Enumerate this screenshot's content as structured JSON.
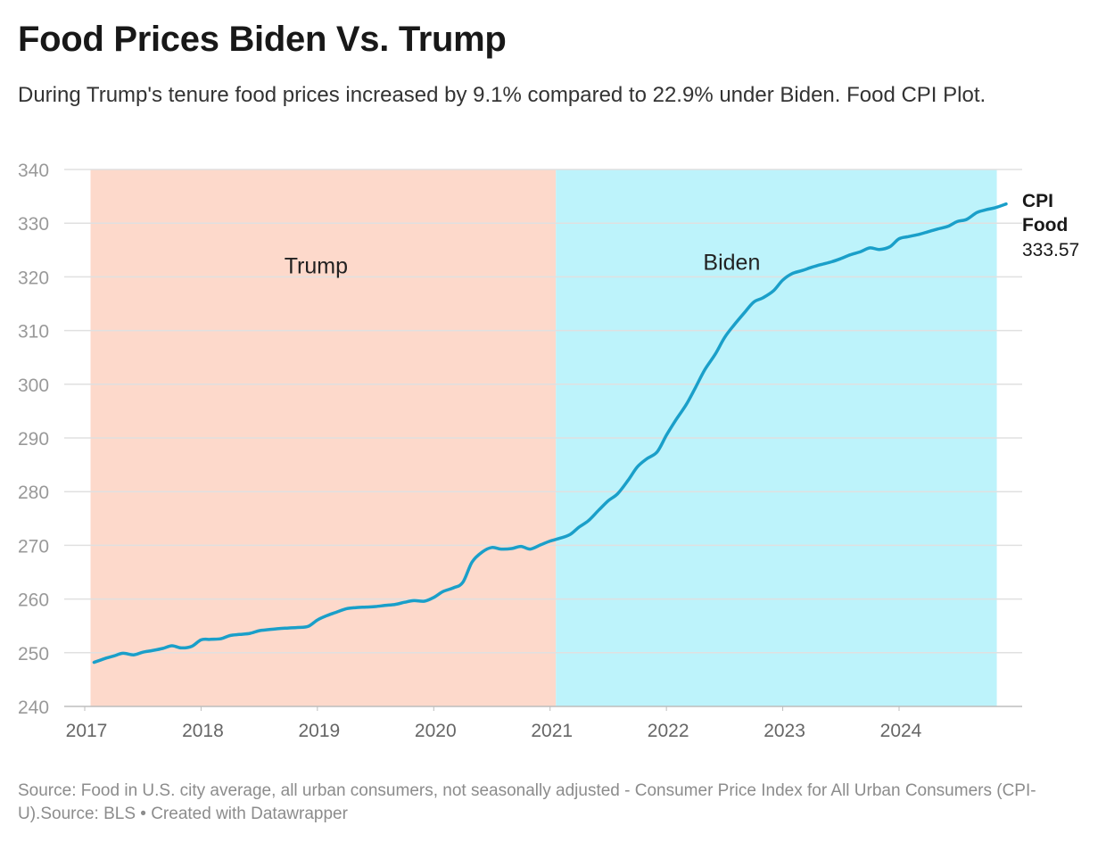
{
  "title": "Food Prices Biden Vs. Trump",
  "subtitle": "During Trump's tenure food prices increased by 9.1% compared to 22.9% under Biden. Food CPI Plot.",
  "source": "Source: Food in U.S. city average, all urban consumers, not seasonally adjusted - Consumer Price Index for All Urban Consumers (CPI-U).Source: BLS • Created with Datawrapper",
  "colors": {
    "line": "#1a9fc9",
    "trump_band": "#fdd9cb",
    "biden_band": "#bdf3fb",
    "grid": "#e0e0e0",
    "axis_text": "#999999"
  },
  "chart_data": {
    "type": "line",
    "title": "",
    "xlabel": "",
    "ylabel": "",
    "xlim": [
      2017.0,
      2024.92
    ],
    "ylim": [
      240,
      340
    ],
    "y_ticks": [
      240,
      250,
      260,
      270,
      280,
      290,
      300,
      310,
      320,
      330,
      340
    ],
    "x_ticks": [
      2017,
      2018,
      2019,
      2020,
      2021,
      2022,
      2023,
      2024
    ],
    "grid": true,
    "bands": [
      {
        "label": "Trump",
        "start": 2017.05,
        "end": 2021.05
      },
      {
        "label": "Biden",
        "start": 2021.05,
        "end": 2024.84
      }
    ],
    "series": [
      {
        "name": "CPI Food",
        "end_label_value": "333.57",
        "points": [
          [
            2017.08,
            248.2
          ],
          [
            2017.17,
            248.9
          ],
          [
            2017.25,
            249.4
          ],
          [
            2017.33,
            249.9
          ],
          [
            2017.42,
            249.6
          ],
          [
            2017.5,
            250.1
          ],
          [
            2017.58,
            250.4
          ],
          [
            2017.67,
            250.8
          ],
          [
            2017.75,
            251.3
          ],
          [
            2017.83,
            250.9
          ],
          [
            2017.92,
            251.2
          ],
          [
            2018.0,
            252.4
          ],
          [
            2018.08,
            252.5
          ],
          [
            2018.17,
            252.6
          ],
          [
            2018.25,
            253.2
          ],
          [
            2018.33,
            253.4
          ],
          [
            2018.42,
            253.6
          ],
          [
            2018.5,
            254.1
          ],
          [
            2018.58,
            254.3
          ],
          [
            2018.67,
            254.5
          ],
          [
            2018.75,
            254.6
          ],
          [
            2018.83,
            254.7
          ],
          [
            2018.92,
            254.9
          ],
          [
            2019.0,
            256.1
          ],
          [
            2019.08,
            256.9
          ],
          [
            2019.17,
            257.6
          ],
          [
            2019.25,
            258.2
          ],
          [
            2019.33,
            258.4
          ],
          [
            2019.42,
            258.5
          ],
          [
            2019.5,
            258.6
          ],
          [
            2019.58,
            258.8
          ],
          [
            2019.67,
            259.0
          ],
          [
            2019.75,
            259.4
          ],
          [
            2019.83,
            259.7
          ],
          [
            2019.92,
            259.6
          ],
          [
            2020.0,
            260.3
          ],
          [
            2020.08,
            261.4
          ],
          [
            2020.17,
            262.1
          ],
          [
            2020.25,
            263.1
          ],
          [
            2020.33,
            266.9
          ],
          [
            2020.42,
            268.8
          ],
          [
            2020.5,
            269.6
          ],
          [
            2020.58,
            269.3
          ],
          [
            2020.67,
            269.4
          ],
          [
            2020.75,
            269.8
          ],
          [
            2020.83,
            269.3
          ],
          [
            2020.92,
            270.1
          ],
          [
            2021.0,
            270.8
          ],
          [
            2021.08,
            271.3
          ],
          [
            2021.17,
            272.0
          ],
          [
            2021.25,
            273.4
          ],
          [
            2021.33,
            274.6
          ],
          [
            2021.42,
            276.6
          ],
          [
            2021.5,
            278.3
          ],
          [
            2021.58,
            279.6
          ],
          [
            2021.67,
            282.1
          ],
          [
            2021.75,
            284.6
          ],
          [
            2021.83,
            286.1
          ],
          [
            2021.92,
            287.4
          ],
          [
            2022.0,
            290.5
          ],
          [
            2022.08,
            293.3
          ],
          [
            2022.17,
            296.2
          ],
          [
            2022.25,
            299.4
          ],
          [
            2022.33,
            302.7
          ],
          [
            2022.42,
            305.6
          ],
          [
            2022.5,
            308.7
          ],
          [
            2022.58,
            311.0
          ],
          [
            2022.67,
            313.3
          ],
          [
            2022.75,
            315.3
          ],
          [
            2022.83,
            316.1
          ],
          [
            2022.92,
            317.4
          ],
          [
            2023.0,
            319.4
          ],
          [
            2023.08,
            320.6
          ],
          [
            2023.17,
            321.2
          ],
          [
            2023.25,
            321.8
          ],
          [
            2023.33,
            322.3
          ],
          [
            2023.42,
            322.8
          ],
          [
            2023.5,
            323.4
          ],
          [
            2023.58,
            324.1
          ],
          [
            2023.67,
            324.7
          ],
          [
            2023.75,
            325.4
          ],
          [
            2023.83,
            325.1
          ],
          [
            2023.92,
            325.6
          ],
          [
            2024.0,
            327.1
          ],
          [
            2024.08,
            327.5
          ],
          [
            2024.17,
            327.9
          ],
          [
            2024.25,
            328.4
          ],
          [
            2024.33,
            328.9
          ],
          [
            2024.42,
            329.4
          ],
          [
            2024.5,
            330.3
          ],
          [
            2024.58,
            330.7
          ],
          [
            2024.67,
            332.0
          ],
          [
            2024.75,
            332.5
          ],
          [
            2024.83,
            332.9
          ],
          [
            2024.92,
            333.57
          ]
        ]
      }
    ]
  }
}
